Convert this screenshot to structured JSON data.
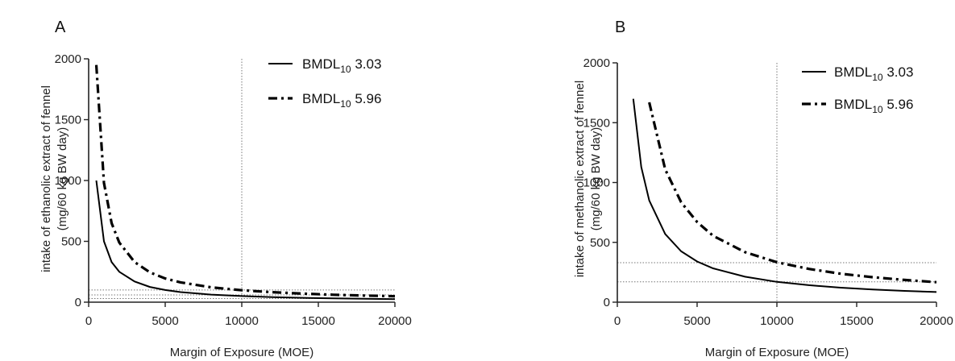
{
  "chart_data": [
    {
      "panel": "A",
      "type": "line",
      "xlabel": "Margin of Exposure (MOE)",
      "ylabel": [
        "intake of ethanolic extract of fennel",
        "(mg/60 kg BW day)"
      ],
      "xlim": [
        0,
        20000
      ],
      "ylim": [
        0,
        2000
      ],
      "xticks": [
        0,
        5000,
        10000,
        15000,
        20000
      ],
      "yticks": [
        0,
        500,
        1000,
        1500,
        2000
      ],
      "legend": "top-right",
      "grid": false,
      "reference_lines": {
        "vertical_x": [
          10000
        ],
        "horizontal_y": [
          30,
          60,
          100
        ]
      },
      "series": [
        {
          "name_main": "BMDL",
          "name_sub": "10",
          "name_value": " 3.03",
          "style": "solid",
          "x": [
            500,
            1000,
            1500,
            2000,
            3000,
            4000,
            5000,
            6000,
            8000,
            10000,
            12000,
            14000,
            16000,
            18000,
            20000
          ],
          "y": [
            1000,
            500,
            330,
            250,
            170,
            125,
            100,
            83,
            62,
            50,
            42,
            36,
            31,
            28,
            25
          ]
        },
        {
          "name_main": "BMDL",
          "name_sub": "10",
          "name_value": " 5.96",
          "style": "dashdot",
          "x": [
            500,
            1000,
            1500,
            2000,
            3000,
            4000,
            5000,
            6000,
            8000,
            10000,
            12000,
            14000,
            16000,
            18000,
            20000
          ],
          "y": [
            1950,
            980,
            650,
            490,
            330,
            245,
            195,
            163,
            122,
            98,
            82,
            70,
            61,
            54,
            49
          ]
        }
      ]
    },
    {
      "panel": "B",
      "type": "line",
      "xlabel": "Margin of Exposure (MOE)",
      "ylabel": [
        "intake of methanolic extract of fennel",
        "(mg/60 kg BW day)"
      ],
      "xlim": [
        0,
        20000
      ],
      "ylim": [
        0,
        2000
      ],
      "xticks": [
        0,
        5000,
        10000,
        15000,
        20000
      ],
      "yticks": [
        0,
        500,
        1000,
        1500,
        2000
      ],
      "legend": "top-right",
      "grid": false,
      "reference_lines": {
        "vertical_x": [
          10000
        ],
        "horizontal_y": [
          170,
          330
        ]
      },
      "series": [
        {
          "name_main": "BMDL",
          "name_sub": "10",
          "name_value": " 3.03",
          "style": "solid",
          "x": [
            1000,
            1500,
            2000,
            3000,
            4000,
            5000,
            6000,
            8000,
            10000,
            12000,
            14000,
            16000,
            18000,
            20000
          ],
          "y": [
            1700,
            1130,
            850,
            570,
            425,
            340,
            283,
            213,
            170,
            142,
            121,
            106,
            94,
            85
          ]
        },
        {
          "name_main": "BMDL",
          "name_sub": "10",
          "name_value": " 5.96",
          "style": "dashdot",
          "x": [
            2000,
            3000,
            4000,
            5000,
            6000,
            8000,
            10000,
            12000,
            14000,
            16000,
            18000,
            20000
          ],
          "y": [
            1670,
            1110,
            835,
            670,
            555,
            418,
            334,
            278,
            238,
            209,
            186,
            167
          ]
        }
      ]
    }
  ]
}
